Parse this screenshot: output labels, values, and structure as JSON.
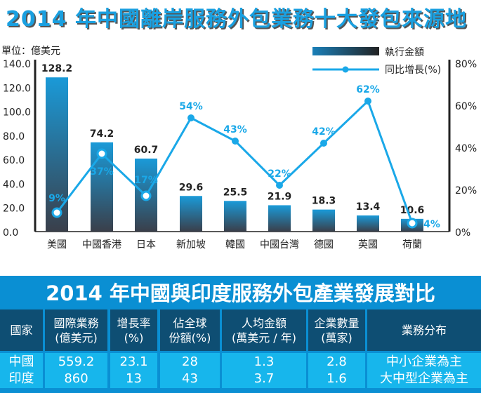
{
  "chart_data": {
    "type": "bar+line",
    "title": "2014 年中國離岸服務外包業務十大發包來源地",
    "unit_label": "單位：億美元",
    "categories": [
      "美國",
      "中國香港",
      "日本",
      "新加坡",
      "韓國",
      "中國台灣",
      "德國",
      "英國",
      "荷蘭"
    ],
    "series": [
      {
        "name": "執行金額",
        "type": "bar",
        "values": [
          128.2,
          74.2,
          60.7,
          29.6,
          25.5,
          21.9,
          18.3,
          13.4,
          10.6
        ],
        "labels": [
          "128.2",
          "74.2",
          "60.7",
          "29.6",
          "25.5",
          "21.9",
          "18.3",
          "13.4",
          "10.6"
        ]
      },
      {
        "name": "同比增長(%)",
        "type": "line",
        "values": [
          9,
          37,
          17,
          54,
          43,
          22,
          42,
          62,
          4
        ],
        "labels": [
          "9%",
          "37%",
          "17%",
          "54%",
          "43%",
          "22%",
          "42%",
          "62%",
          "4%"
        ]
      }
    ],
    "y_left": {
      "range": [
        0,
        140
      ],
      "ticks": [
        "0.0",
        "20.0",
        "40.0",
        "60.0",
        "80.0",
        "100.0",
        "120.0",
        "140.0"
      ]
    },
    "y_right": {
      "range": [
        0,
        80
      ],
      "ticks": [
        "0%",
        "20%",
        "40%",
        "60%",
        "80%"
      ]
    },
    "legend": "top-right",
    "colors": {
      "bar_top": "#1a9ad8",
      "bar_bottom": "#3a3f4a",
      "line": "#1aa8e8"
    }
  },
  "table": {
    "title": "2014 年中國與印度服務外包產業發展對比",
    "headers": [
      [
        "國家"
      ],
      [
        "國際業務",
        "(億美元)"
      ],
      [
        "增長率",
        "(%)"
      ],
      [
        "佔全球",
        "份額(%)"
      ],
      [
        "人均金額",
        "(萬美元 / 年)"
      ],
      [
        "企業數量",
        "(萬家)"
      ],
      [
        "業務分布"
      ]
    ],
    "rows": [
      [
        "中國",
        "559.2",
        "23.1",
        "28",
        "1.3",
        "2.8",
        "中小企業為主"
      ],
      [
        "印度",
        "860",
        "13",
        "43",
        "3.7",
        "1.6",
        "大中型企業為主"
      ]
    ]
  }
}
